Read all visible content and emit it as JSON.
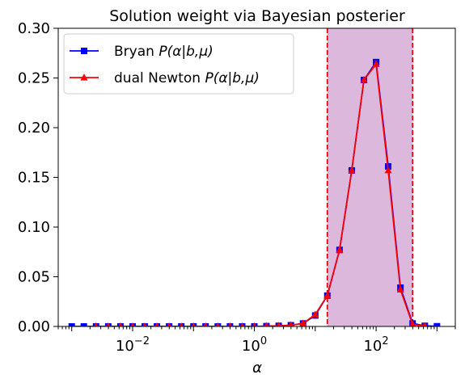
{
  "chart_data": {
    "type": "line",
    "title": "Solution weight via Bayesian posterier",
    "xlabel": "α",
    "ylabel": "",
    "xscale": "log",
    "xlim": [
      0.0006,
      2000
    ],
    "ylim": [
      0,
      0.3
    ],
    "yticks": [
      "0.00",
      "0.05",
      "0.10",
      "0.15",
      "0.20",
      "0.25",
      "0.30"
    ],
    "yticks_values": [
      0,
      0.05,
      0.1,
      0.15,
      0.2,
      0.25,
      0.3
    ],
    "xticks": [
      {
        "value": 0.01,
        "base": "10",
        "exp": "−2"
      },
      {
        "value": 1,
        "base": "10",
        "exp": "0"
      },
      {
        "value": 100,
        "base": "10",
        "exp": "2"
      }
    ],
    "shaded_region": {
      "x": [
        15.8,
        398
      ],
      "color": "#c080c0"
    },
    "vlines": [
      15.8,
      398
    ],
    "vline_color": "#e8000b",
    "legend_position": "top-left",
    "grid": false,
    "series": [
      {
        "name": "Bryan P(α|b,μ)",
        "color": "#0000ff",
        "marker": "square",
        "x": [
          0.001,
          0.00158,
          0.00251,
          0.00398,
          0.00631,
          0.01,
          0.0158,
          0.0251,
          0.0398,
          0.0631,
          0.1,
          0.158,
          0.251,
          0.398,
          0.631,
          1,
          1.58,
          2.51,
          3.98,
          6.31,
          10,
          15.8,
          25.1,
          39.8,
          63.1,
          100,
          158,
          251,
          398,
          631,
          1000
        ],
        "values": [
          0,
          0,
          0,
          0,
          0,
          0,
          0,
          0,
          0,
          0,
          0,
          0,
          0,
          0,
          0,
          0,
          0.0003,
          0.0006,
          0.0012,
          0.003,
          0.011,
          0.031,
          0.077,
          0.157,
          0.248,
          0.266,
          0.161,
          0.039,
          0.003,
          0.0006,
          0.0002
        ]
      },
      {
        "name": "dual Newton P(α|b,μ)",
        "color": "#ff0000",
        "marker": "triangle",
        "x": [
          0.00251,
          0.00398,
          0.00631,
          0.01,
          0.0158,
          0.0251,
          0.0398,
          0.0631,
          0.1,
          0.158,
          0.251,
          0.398,
          0.631,
          1,
          1.58,
          2.51,
          3.98,
          6.31,
          10,
          15.8,
          25.1,
          39.8,
          63.1,
          100,
          158,
          251,
          398,
          631
        ],
        "values": [
          0,
          0,
          0,
          0,
          0,
          0,
          0,
          0,
          0,
          0,
          0,
          0,
          0,
          0,
          0.0003,
          0.0006,
          0.0012,
          0.003,
          0.012,
          0.031,
          0.077,
          0.157,
          0.248,
          0.264,
          0.157,
          0.037,
          0.002,
          0.0005
        ]
      }
    ],
    "legend": [
      {
        "label": "Bryan ",
        "math": "P(α|b,μ)"
      },
      {
        "label": "dual Newton ",
        "math": "P(α|b,μ)"
      }
    ]
  }
}
